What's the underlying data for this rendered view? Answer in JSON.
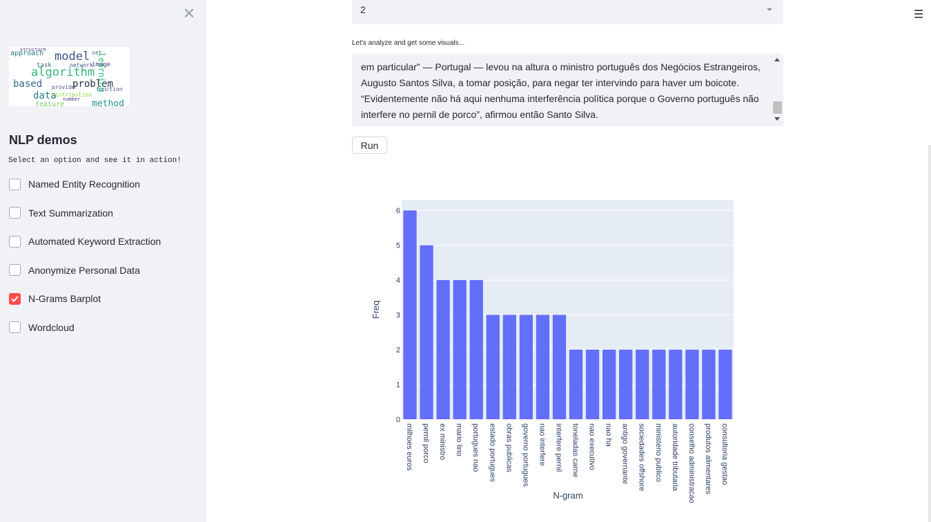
{
  "sidebar": {
    "close_icon": "close-icon",
    "logo_words": [
      "approach",
      "model",
      "algorithm",
      "task",
      "network",
      "image",
      "problem",
      "based",
      "data",
      "feature",
      "method",
      "provide",
      "distribution",
      "function",
      "learning",
      "structure",
      "set",
      "number"
    ],
    "title": "NLP demos",
    "subtitle": "Select an option and see it in action!",
    "options": [
      {
        "label": "Named Entity Recognition",
        "checked": false
      },
      {
        "label": "Text Summarization",
        "checked": false
      },
      {
        "label": "Automated Keyword Extraction",
        "checked": false
      },
      {
        "label": "Anonymize Personal Data",
        "checked": false
      },
      {
        "label": "N-Grams Barplot",
        "checked": true
      },
      {
        "label": "Wordcloud",
        "checked": false
      }
    ]
  },
  "main": {
    "menu_icon": "hamburger-menu-icon",
    "select_value": "2",
    "textarea_label": "Let's analyze and get some visuals...",
    "textarea_text": "em particular” — Portugal — levou na altura o ministro português dos Negócios Estrangeiros, Augusto Santos Silva, a tomar posição, para negar ter intervindo para haver um boicote. “Evidentemente não há aqui nenhuma interferência política porque o Governo português não interfere no pernil de porco”, afirmou então Santo Silva.",
    "run_label": "Run"
  },
  "colors": {
    "accent": "#ff4b4b",
    "bar": "#636efa",
    "plot_bg": "#e5ecf6",
    "sidebar_bg": "#f0f2f6"
  },
  "chart_data": {
    "type": "bar",
    "xlabel": "N-gram",
    "ylabel": "Freq",
    "ylim": [
      0,
      6.3
    ],
    "yticks": [
      0,
      1,
      2,
      3,
      4,
      5,
      6
    ],
    "categories": [
      "milhoes euros",
      "pernil porco",
      "ex ministro",
      "mario lino",
      "portugues nao",
      "estado portugues",
      "obras publicas",
      "governo portugues",
      "nao interfere",
      "interfere pernil",
      "toneladas carne",
      "nao executivo",
      "nao ha",
      "antigo governante",
      "sociedades offshore",
      "ministerio publico",
      "autoridade tributaria",
      "conselho administracao",
      "produtos alimentares",
      "consultoria gestao"
    ],
    "values": [
      6,
      5,
      4,
      4,
      4,
      3,
      3,
      3,
      3,
      3,
      2,
      2,
      2,
      2,
      2,
      2,
      2,
      2,
      2,
      2
    ],
    "grid": true
  }
}
